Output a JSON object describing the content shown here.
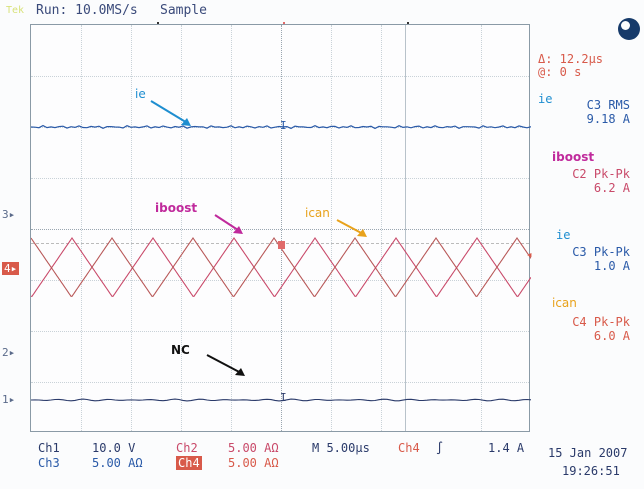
{
  "topbar": {
    "brand": "Tek",
    "run_status": "Run: 10.0MS/s",
    "acq_mode": "Sample"
  },
  "cursor": {
    "delta_time": "Δ: 12.2μs",
    "at_time": "@: 0 s"
  },
  "channel_markers": {
    "ch3": "3",
    "ch4": "4",
    "ch2": "2",
    "ch1": "1"
  },
  "annotations": {
    "ie": "ie",
    "iboost": "iboost",
    "ican": "ican",
    "nc": "NC"
  },
  "measurements": [
    {
      "label": "ie",
      "name": "C3 RMS",
      "value": "9.18 A",
      "color": "#1e8ed0"
    },
    {
      "label": "iboost",
      "name": "C2 Pk-Pk",
      "value": "6.2 A",
      "color": "#c02a9c"
    },
    {
      "label": "ie",
      "name": "C3 Pk-Pk",
      "value": "1.0 A",
      "color": "#1e8ed0"
    },
    {
      "label": "ican",
      "name": "C4 Pk-Pk",
      "value": "6.0 A",
      "color": "#e8a21c"
    }
  ],
  "bottom": {
    "ch1": "Ch1",
    "ch1_scale": "10.0 V",
    "ch2": "Ch2",
    "ch2_scale": "5.00 AΩ",
    "timebase": "M 5.00μs",
    "trig_ch": "Ch4",
    "trig_slope": "∫",
    "trig_level": "1.4 A",
    "ch3": "Ch3",
    "ch3_scale": "5.00 AΩ",
    "ch4": "Ch4",
    "ch4_scale": "5.00 AΩ",
    "date": "15 Jan 2007",
    "time": "19:26:51"
  },
  "colors": {
    "ch1": "#2a3a6a",
    "ch2": "#c94a6a",
    "ch3": "#2a5aa8",
    "ch4": "#d85a4a",
    "iboost_text": "#c02a9c",
    "ican_text": "#e8a21c",
    "ie_text": "#1e8ed0"
  }
}
